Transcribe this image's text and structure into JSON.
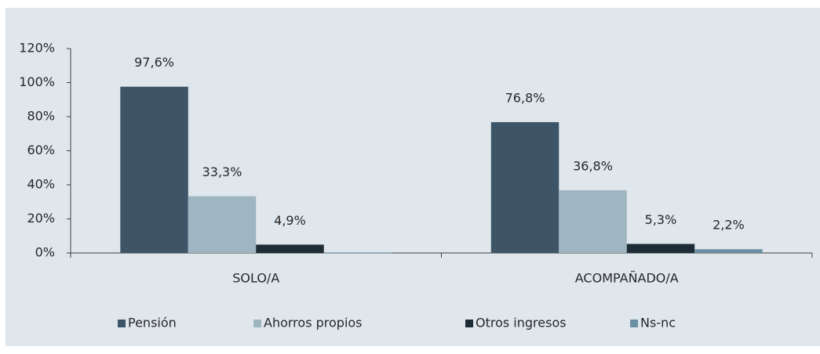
{
  "chart_data": {
    "type": "bar",
    "categories": [
      "SOLO/A",
      "ACOMPAÑADO/A"
    ],
    "series": [
      {
        "name": "Pensión",
        "color": "#3d5566",
        "values": [
          97.6,
          76.8
        ],
        "value_labels": [
          "97,6%",
          "76,8%"
        ]
      },
      {
        "name": "Ahorros propios",
        "color": "#9fb6c2",
        "values": [
          33.3,
          36.8
        ],
        "value_labels": [
          "33,3%",
          "36,8%"
        ]
      },
      {
        "name": "Otros ingresos",
        "color": "#1e2c36",
        "values": [
          4.9,
          5.3
        ],
        "value_labels": [
          "4,9%",
          "5,3%"
        ]
      },
      {
        "name": "Ns-nc",
        "color": "#6b8fa3",
        "values": [
          0.3,
          2.2
        ],
        "value_labels": [
          null,
          "2,2%"
        ]
      }
    ],
    "ylim": [
      0,
      120
    ],
    "yticks": [
      {
        "value": 0,
        "label": "0%"
      },
      {
        "value": 20,
        "label": "20%"
      },
      {
        "value": 40,
        "label": "40%"
      },
      {
        "value": 60,
        "label": "60%"
      },
      {
        "value": 80,
        "label": "80%"
      },
      {
        "value": 100,
        "label": "100%"
      },
      {
        "value": 120,
        "label": "120%"
      }
    ],
    "legend": "bottom"
  }
}
